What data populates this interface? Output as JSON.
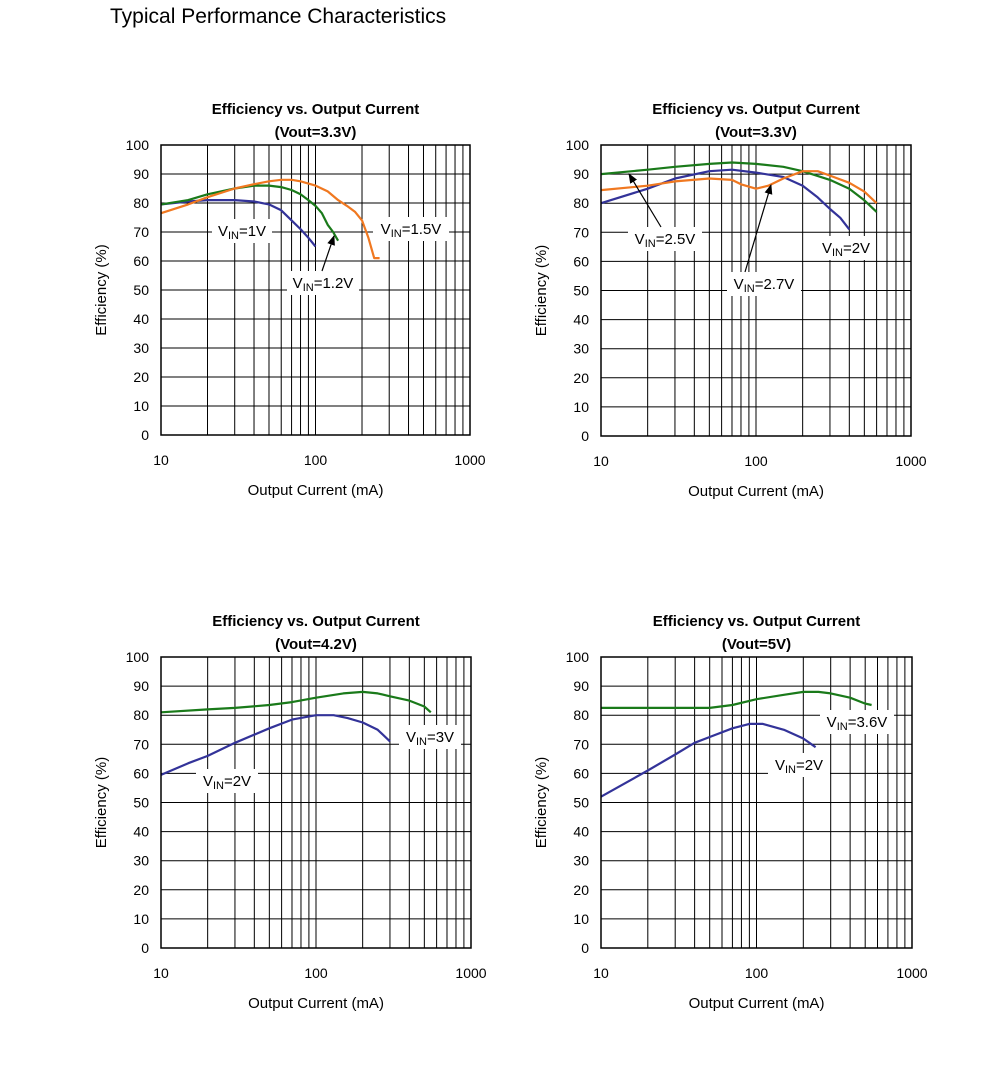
{
  "page": {
    "title": "Typical Performance Characteristics"
  },
  "chart_data": [
    {
      "type": "line",
      "title": "Efficiency  vs. Output Current",
      "subtitle": "(Vout=3.3V)",
      "xlabel": "Output Current (mA)",
      "ylabel": "Efficiency (%)",
      "xscale": "log",
      "xlim": [
        10,
        1000
      ],
      "ylim": [
        0,
        100
      ],
      "grid": true,
      "x_tick_labels": [
        "10",
        "100",
        "1000"
      ],
      "y_tick_labels": [
        "0",
        "10",
        "20",
        "30",
        "40",
        "50",
        "60",
        "70",
        "80",
        "90",
        "100"
      ],
      "series": [
        {
          "name": "VIN=1V",
          "color": "#333399",
          "x": [
            10,
            15,
            20,
            30,
            40,
            50,
            60,
            70,
            80,
            90,
            100
          ],
          "y": [
            79.5,
            80.5,
            81,
            81,
            80.5,
            79.5,
            77.5,
            74,
            71,
            68,
            65
          ]
        },
        {
          "name": "VIN=1.2V",
          "color": "#1a7a1a",
          "x": [
            10,
            15,
            20,
            30,
            40,
            50,
            60,
            70,
            80,
            90,
            100,
            110,
            120,
            130,
            140
          ],
          "y": [
            79.5,
            81,
            83,
            85,
            86,
            86,
            85.5,
            84.5,
            83,
            81,
            79,
            76.5,
            72.5,
            70,
            67
          ]
        },
        {
          "name": "VIN=1.5V",
          "color": "#f07820",
          "x": [
            10,
            15,
            20,
            30,
            40,
            50,
            60,
            70,
            80,
            100,
            120,
            140,
            160,
            180,
            200,
            220,
            240,
            260
          ],
          "y": [
            76.5,
            79.5,
            82,
            85,
            86.5,
            87.5,
            88,
            88,
            87.5,
            86,
            84,
            81,
            79,
            77,
            74,
            68,
            61,
            61
          ]
        }
      ],
      "annotations": [
        {
          "main": "V",
          "sub": "IN",
          "rest": "=1V"
        },
        {
          "main": "V",
          "sub": "IN",
          "rest": "=1.2V"
        },
        {
          "main": "V",
          "sub": "IN",
          "rest": "=1.5V"
        }
      ]
    },
    {
      "type": "line",
      "title": "Efficiency  vs. Output Current",
      "subtitle": "(Vout=3.3V)",
      "xlabel": "Output Current (mA)",
      "ylabel": "Efficiency (%)",
      "xscale": "log",
      "xlim": [
        10,
        1000
      ],
      "ylim": [
        0,
        100
      ],
      "grid": true,
      "x_tick_labels": [
        "10",
        "100",
        "1000"
      ],
      "y_tick_labels": [
        "0",
        "10",
        "20",
        "30",
        "40",
        "50",
        "60",
        "70",
        "80",
        "90",
        "100"
      ],
      "series": [
        {
          "name": "VIN=2V",
          "color": "#333399",
          "x": [
            10,
            20,
            30,
            50,
            70,
            100,
            150,
            200,
            250,
            300,
            350,
            400
          ],
          "y": [
            80,
            85,
            88.5,
            91,
            91.5,
            90.5,
            89,
            86,
            82,
            78,
            75,
            71
          ]
        },
        {
          "name": "VIN=2.5V",
          "color": "#1a7a1a",
          "x": [
            10,
            20,
            30,
            50,
            70,
            100,
            150,
            200,
            300,
            400,
            500,
            600
          ],
          "y": [
            90,
            91.5,
            92.5,
            93.5,
            94,
            93.5,
            92.5,
            91,
            88,
            85,
            81,
            77
          ]
        },
        {
          "name": "VIN=2.7V",
          "color": "#f07820",
          "x": [
            10,
            20,
            30,
            50,
            70,
            80,
            100,
            120,
            150,
            200,
            250,
            300,
            400,
            500,
            600
          ],
          "y": [
            84.5,
            86,
            87.5,
            88.5,
            88,
            86.5,
            85,
            86,
            88.5,
            91,
            91,
            89.5,
            87,
            84,
            80
          ]
        }
      ],
      "annotations": [
        {
          "main": "V",
          "sub": "IN",
          "rest": "=2.5V"
        },
        {
          "main": "V",
          "sub": "IN",
          "rest": "=2.7V"
        },
        {
          "main": "V",
          "sub": "IN",
          "rest": "=2V"
        }
      ]
    },
    {
      "type": "line",
      "title": "Efficiency  vs. Output Current",
      "subtitle": "(Vout=4.2V)",
      "xlabel": "Output Current (mA)",
      "ylabel": "Efficiency (%)",
      "xscale": "log",
      "xlim": [
        10,
        1000
      ],
      "ylim": [
        0,
        100
      ],
      "grid": true,
      "x_tick_labels": [
        "10",
        "100",
        "1000"
      ],
      "y_tick_labels": [
        "0",
        "10",
        "20",
        "30",
        "40",
        "50",
        "60",
        "70",
        "80",
        "90",
        "100"
      ],
      "series": [
        {
          "name": "VIN=2V",
          "color": "#333399",
          "x": [
            10,
            15,
            20,
            30,
            50,
            70,
            100,
            130,
            160,
            200,
            250,
            300
          ],
          "y": [
            59.5,
            63.5,
            66,
            70.5,
            75.5,
            78.5,
            80,
            80,
            79,
            77.5,
            75,
            71
          ]
        },
        {
          "name": "VIN=3V",
          "color": "#1a7a1a",
          "x": [
            10,
            20,
            30,
            50,
            70,
            100,
            150,
            200,
            250,
            300,
            400,
            500,
            550
          ],
          "y": [
            81,
            82,
            82.5,
            83.5,
            84.5,
            86,
            87.5,
            88,
            87.5,
            86.5,
            85,
            83,
            81
          ]
        }
      ],
      "annotations": [
        {
          "main": "V",
          "sub": "IN",
          "rest": "=3V"
        },
        {
          "main": "V",
          "sub": "IN",
          "rest": "=2V"
        }
      ]
    },
    {
      "type": "line",
      "title": "Efficiency  vs. Output Current",
      "subtitle": "(Vout=5V)",
      "xlabel": "Output Current (mA)",
      "ylabel": "Efficiency (%)",
      "xscale": "log",
      "xlim": [
        10,
        1000
      ],
      "ylim": [
        0,
        100
      ],
      "grid": true,
      "x_tick_labels": [
        "10",
        "100",
        "1000"
      ],
      "y_tick_labels": [
        "0",
        "10",
        "20",
        "30",
        "40",
        "50",
        "60",
        "70",
        "80",
        "90",
        "100"
      ],
      "series": [
        {
          "name": "VIN=2V",
          "color": "#333399",
          "x": [
            10,
            20,
            30,
            40,
            50,
            70,
            90,
            110,
            150,
            200,
            240
          ],
          "y": [
            52,
            61,
            66.5,
            70.5,
            72.5,
            75.5,
            77,
            77,
            75,
            72,
            69
          ]
        },
        {
          "name": "VIN=3.6V",
          "color": "#1a7a1a",
          "x": [
            10,
            20,
            30,
            50,
            70,
            100,
            150,
            200,
            250,
            300,
            400,
            500,
            550
          ],
          "y": [
            82.5,
            82.5,
            82.5,
            82.5,
            83.5,
            85.5,
            87,
            88,
            88,
            87.5,
            86,
            84,
            83.5
          ]
        }
      ],
      "annotations": [
        {
          "main": "V",
          "sub": "IN",
          "rest": "=3.6V"
        },
        {
          "main": "V",
          "sub": "IN",
          "rest": "=2V"
        }
      ]
    }
  ]
}
